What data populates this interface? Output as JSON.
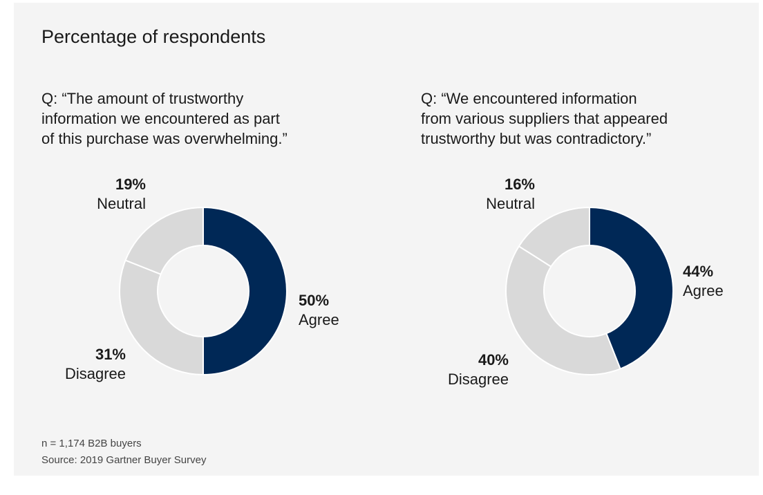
{
  "colors": {
    "agree": "#002856",
    "other": "#d9d9d9",
    "separator": "#ffffff",
    "background": "#f4f4f4"
  },
  "chart_title": "Percentage of respondents",
  "chart_data": [
    {
      "type": "pie",
      "title": "",
      "question": [
        "Q: “The amount of trustworthy",
        "information we encountered as part",
        "of this purchase was overwhelming.”"
      ],
      "categories": [
        "Agree",
        "Disagree",
        "Neutral"
      ],
      "values": [
        50,
        31,
        19
      ],
      "value_labels": [
        "50%",
        "31%",
        "19%"
      ],
      "colors": [
        "#002856",
        "#d9d9d9",
        "#d9d9d9"
      ]
    },
    {
      "type": "pie",
      "title": "",
      "question": [
        "Q: “We encountered information",
        "from various suppliers that appeared",
        "trustworthy but was contradictory.”"
      ],
      "categories": [
        "Agree",
        "Disagree",
        "Neutral"
      ],
      "values": [
        44,
        40,
        16
      ],
      "value_labels": [
        "44%",
        "40%",
        "16%"
      ],
      "colors": [
        "#002856",
        "#d9d9d9",
        "#d9d9d9"
      ]
    }
  ],
  "footnotes": {
    "sample": "n = 1,174 B2B buyers",
    "source": "Source: 2019 Gartner Buyer Survey"
  }
}
